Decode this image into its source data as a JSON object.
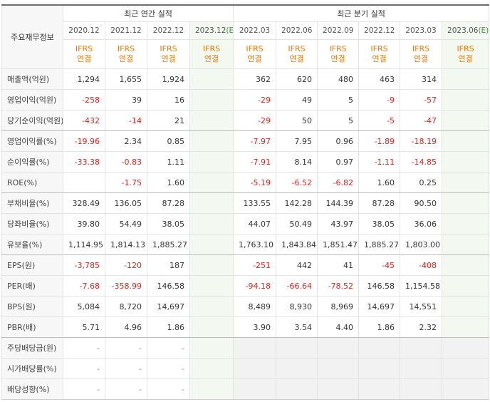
{
  "table": {
    "corner": "주요재무정보",
    "groups": [
      {
        "title": "최근 연간 실적",
        "columns": [
          {
            "period": "2020.12"
          },
          {
            "period": "2021.12"
          },
          {
            "period": "2022.12"
          },
          {
            "period": "2023.12",
            "estimate": "(E)"
          }
        ]
      },
      {
        "title": "최근 분기 실적",
        "columns": [
          {
            "period": "2022.03"
          },
          {
            "period": "2022.06"
          },
          {
            "period": "2022.09"
          },
          {
            "period": "2022.12"
          },
          {
            "period": "2023.03"
          },
          {
            "period": "2023.06",
            "estimate": "(E)"
          }
        ]
      }
    ],
    "basis": [
      "IFRS",
      "연결"
    ],
    "rows": [
      {
        "label": "매출액(억원)",
        "values": [
          "1,294",
          "1,655",
          "1,924",
          null,
          "362",
          "620",
          "480",
          "463",
          "314",
          null
        ]
      },
      {
        "label": "영업이익(억원)",
        "values": [
          "-258",
          "39",
          "16",
          null,
          "-29",
          "49",
          "5",
          "-9",
          "-57",
          null
        ]
      },
      {
        "label": "당기순이익(억원)",
        "values": [
          "-432",
          "-14",
          "21",
          null,
          "-29",
          "50",
          "5",
          "-5",
          "-47",
          null
        ]
      },
      {
        "label": "영업이익률(%)",
        "values": [
          "-19.96",
          "2.34",
          "0.85",
          null,
          "-7.97",
          "7.95",
          "0.96",
          "-1.89",
          "-18.19",
          null
        ]
      },
      {
        "label": "순이익률(%)",
        "values": [
          "-33.38",
          "-0.83",
          "1.11",
          null,
          "-7.91",
          "8.14",
          "0.97",
          "-1.11",
          "-14.85",
          null
        ]
      },
      {
        "label": "ROE(%)",
        "values": [
          null,
          "-1.75",
          "1.60",
          null,
          "-5.19",
          "-6.52",
          "-6.82",
          "1.60",
          "0.25",
          null
        ]
      },
      {
        "label": "부채비율(%)",
        "values": [
          "328.49",
          "136.05",
          "87.28",
          null,
          "133.55",
          "142.28",
          "144.39",
          "87.28",
          "90.50",
          null
        ]
      },
      {
        "label": "당좌비율(%)",
        "values": [
          "39.80",
          "54.49",
          "38.05",
          null,
          "44.07",
          "50.49",
          "43.97",
          "38.05",
          "36.06",
          null
        ]
      },
      {
        "label": "유보율(%)",
        "values": [
          "1,114.95",
          "1,814.13",
          "1,885.27",
          null,
          "1,763.10",
          "1,843.84",
          "1,851.47",
          "1,885.27",
          "1,803.00",
          null
        ]
      },
      {
        "label": "EPS(원)",
        "values": [
          "-3,785",
          "-120",
          "187",
          null,
          "-251",
          "442",
          "41",
          "-45",
          "-408",
          null
        ]
      },
      {
        "label": "PER(배)",
        "values": [
          "-7.68",
          "-358.99",
          "146.58",
          null,
          "-94.18",
          "-66.64",
          "-78.52",
          "146.58",
          "1,154.58",
          null
        ]
      },
      {
        "label": "BPS(원)",
        "values": [
          "5,084",
          "8,720",
          "14,697",
          null,
          "8,489",
          "8,930",
          "8,969",
          "14,697",
          "14,551",
          null
        ]
      },
      {
        "label": "PBR(배)",
        "values": [
          "5.71",
          "4.96",
          "1.86",
          null,
          "3.90",
          "3.54",
          "4.40",
          "1.86",
          "2.32",
          null
        ]
      },
      {
        "label": "주당배당금(원)",
        "values": [
          "-",
          "-",
          "-",
          null,
          null,
          null,
          null,
          null,
          null,
          null
        ]
      },
      {
        "label": "시가배당률(%)",
        "values": [
          "-",
          "-",
          "-",
          null,
          null,
          null,
          null,
          null,
          null,
          null
        ]
      },
      {
        "label": "배당성향(%)",
        "values": [
          "-",
          "-",
          "-",
          null,
          null,
          null,
          null,
          null,
          null,
          null
        ]
      }
    ]
  }
}
